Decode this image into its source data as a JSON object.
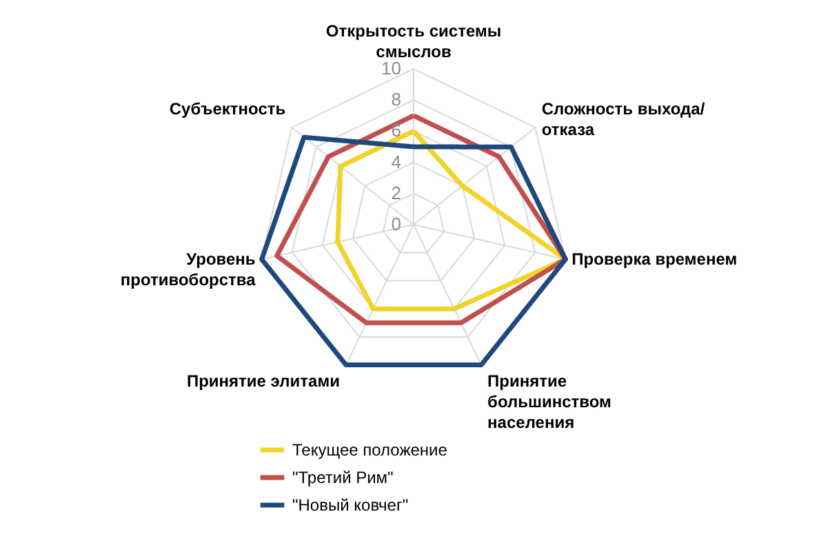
{
  "chart_data": {
    "type": "radar",
    "categories": [
      "Открытость системы смыслов",
      "Сложность выхода/ отказа",
      "Проверка временем",
      "Принятие большинством населения",
      "Принятие элитами",
      "Уровень противоборства",
      "Субъектность"
    ],
    "series": [
      {
        "name": "Текущее положение",
        "color": "#f2d32a",
        "values": [
          6,
          4,
          10,
          6,
          6,
          5,
          6
        ]
      },
      {
        "name": "\"Третий Рим\"",
        "color": "#c0504d",
        "values": [
          7,
          7,
          10,
          7,
          7,
          9,
          7
        ]
      },
      {
        "name": "\"Новый ковчег\"",
        "color": "#1f497d",
        "values": [
          5,
          8,
          10,
          10,
          10,
          10,
          9
        ]
      }
    ],
    "ylim": [
      0,
      10
    ],
    "yticks": [
      0,
      2,
      4,
      6,
      8,
      10
    ],
    "grid": true,
    "legend": "bottom",
    "line_style": "solid",
    "marker": "none"
  }
}
